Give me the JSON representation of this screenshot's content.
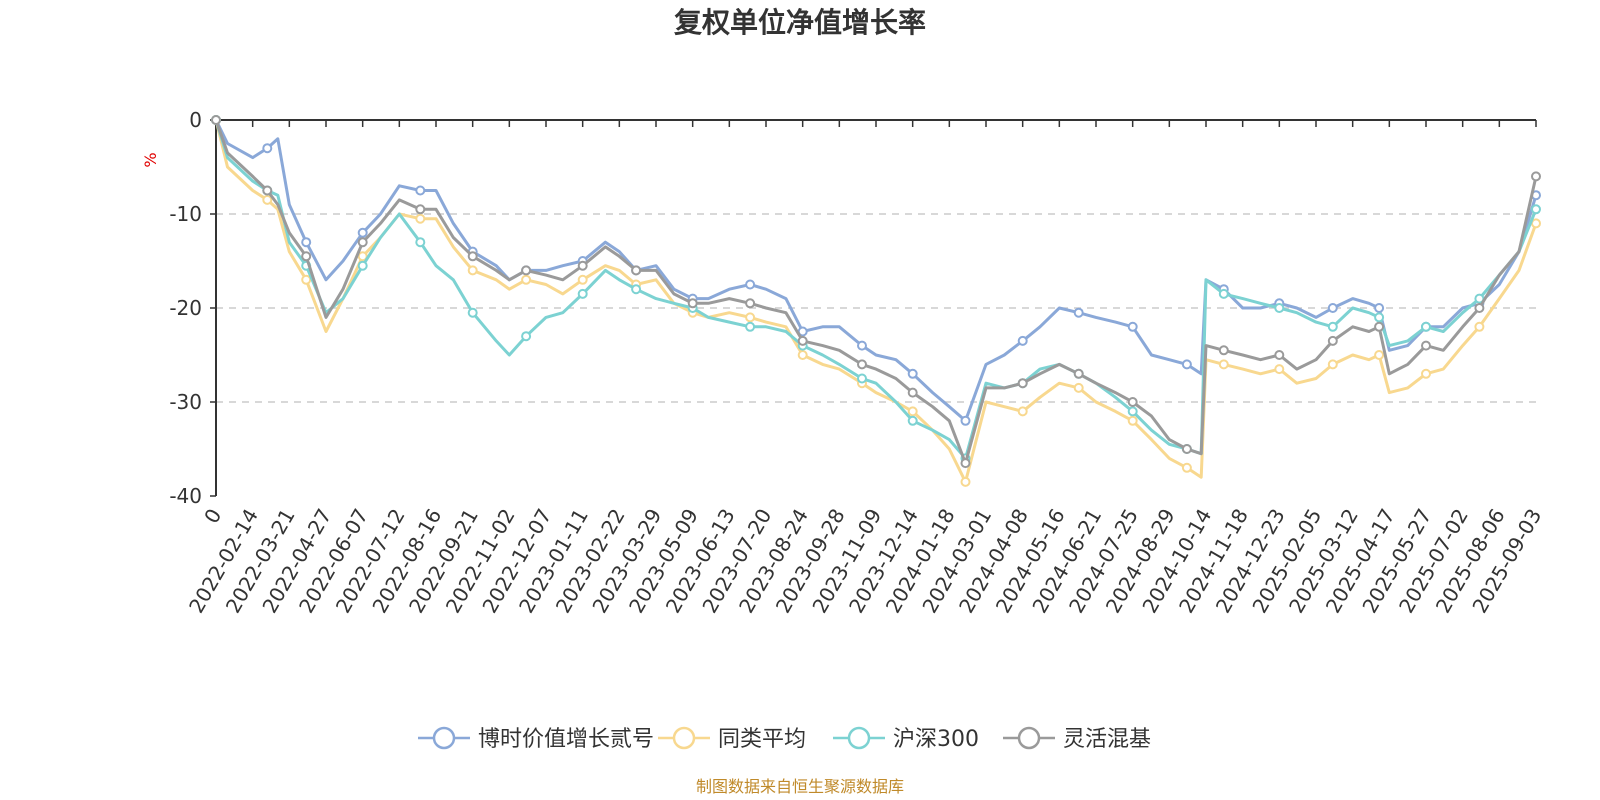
{
  "chart_data": {
    "type": "line",
    "title": "复权单位净值增长率",
    "ylabel": "%",
    "ylim": [
      -40,
      0
    ],
    "yticks": [
      0,
      -10,
      -20,
      -30,
      -40
    ],
    "grid": true,
    "legend_position": "bottom",
    "x_ticks": [
      "0",
      "2022-02-14",
      "2022-03-21",
      "2022-04-27",
      "2022-06-07",
      "2022-07-12",
      "2022-08-16",
      "2022-09-21",
      "2022-11-02",
      "2022-12-07",
      "2023-01-11",
      "2023-02-22",
      "2023-03-29",
      "2023-05-09",
      "2023-06-13",
      "2023-07-20",
      "2023-08-24",
      "2023-09-28",
      "2023-11-09",
      "2023-12-14",
      "2024-01-18",
      "2024-03-01",
      "2024-04-08",
      "2024-05-16",
      "2024-06-21",
      "2024-07-25",
      "2024-08-29",
      "2024-10-14",
      "2024-11-18",
      "2024-12-23",
      "2025-02-05",
      "2025-03-12",
      "2025-04-17",
      "2025-05-27",
      "2025-07-02",
      "2025-08-06",
      "2025-09-03"
    ],
    "x": [
      "2022-01-07",
      "2022-01-21",
      "2022-02-14",
      "2022-02-28",
      "2022-03-10",
      "2022-03-21",
      "2022-04-07",
      "2022-04-27",
      "2022-05-16",
      "2022-06-07",
      "2022-06-24",
      "2022-07-12",
      "2022-08-01",
      "2022-08-16",
      "2022-09-02",
      "2022-09-21",
      "2022-10-18",
      "2022-11-02",
      "2022-11-18",
      "2022-12-07",
      "2022-12-23",
      "2023-01-11",
      "2023-02-06",
      "2023-02-22",
      "2023-03-10",
      "2023-03-29",
      "2023-04-18",
      "2023-05-09",
      "2023-05-24",
      "2023-06-13",
      "2023-07-04",
      "2023-07-20",
      "2023-08-08",
      "2023-08-24",
      "2023-09-12",
      "2023-09-28",
      "2023-10-24",
      "2023-11-09",
      "2023-11-28",
      "2023-12-14",
      "2024-01-02",
      "2024-01-18",
      "2024-02-06",
      "2024-03-01",
      "2024-03-20",
      "2024-04-08",
      "2024-04-26",
      "2024-05-16",
      "2024-06-04",
      "2024-06-21",
      "2024-07-09",
      "2024-07-25",
      "2024-08-12",
      "2024-08-29",
      "2024-09-20",
      "2024-10-08",
      "2024-10-14",
      "2024-10-31",
      "2024-11-18",
      "2024-12-05",
      "2024-12-23",
      "2025-01-13",
      "2025-02-05",
      "2025-02-21",
      "2025-03-12",
      "2025-03-28",
      "2025-04-07",
      "2025-04-17",
      "2025-05-07",
      "2025-05-27",
      "2025-06-13",
      "2025-07-02",
      "2025-07-18",
      "2025-08-06",
      "2025-08-21",
      "2025-09-03"
    ],
    "series": [
      {
        "name": "博时价值增长贰号",
        "color": "#8aa8d8",
        "values": [
          0,
          -2.5,
          -4,
          -3,
          -2,
          -9,
          -13,
          -17,
          -15,
          -12,
          -10,
          -7,
          -7.5,
          -7.5,
          -11,
          -14,
          -15.5,
          -17,
          -16,
          -16,
          -15.5,
          -15,
          -13,
          -14,
          -16,
          -15.5,
          -18,
          -19,
          -19,
          -18,
          -17.5,
          -18,
          -19,
          -22.5,
          -22,
          -22,
          -24,
          -25,
          -25.5,
          -27,
          -29,
          -30.5,
          -32,
          -26,
          -25,
          -23.5,
          -22,
          -20,
          -20.5,
          -21,
          -21.5,
          -22,
          -25,
          -25.5,
          -26,
          -27,
          -17,
          -18,
          -20,
          -20,
          -19.5,
          -20,
          -21,
          -20,
          -19,
          -19.5,
          -20,
          -24.5,
          -24,
          -22,
          -22,
          -20,
          -19.5,
          -17.5,
          -14,
          -8
        ]
      },
      {
        "name": "同类平均",
        "color": "#f8d88f",
        "values": [
          0,
          -5,
          -7.5,
          -8.5,
          -9.5,
          -14,
          -17,
          -22.5,
          -19,
          -14.5,
          -12.5,
          -10,
          -10.5,
          -10.5,
          -13.5,
          -16,
          -17,
          -18,
          -17,
          -17.5,
          -18.5,
          -17,
          -15.5,
          -16,
          -17.5,
          -17,
          -19.5,
          -20.5,
          -21,
          -20.5,
          -21,
          -21.5,
          -22,
          -25,
          -26,
          -26.5,
          -28,
          -29,
          -30,
          -31,
          -33,
          -35,
          -38.5,
          -30,
          -30.5,
          -31,
          -29.5,
          -28,
          -28.5,
          -30,
          -31,
          -32,
          -34,
          -36,
          -37,
          -38,
          -25.5,
          -26,
          -26.5,
          -27,
          -26.5,
          -28,
          -27.5,
          -26,
          -25,
          -25.5,
          -25,
          -29,
          -28.5,
          -27,
          -26.5,
          -24,
          -22,
          -19,
          -16,
          -11
        ]
      },
      {
        "name": "沪深300",
        "color": "#7cd2d2",
        "values": [
          0,
          -4,
          -6.5,
          -7.5,
          -8,
          -13,
          -15.5,
          -20.5,
          -19,
          -15.5,
          -12.5,
          -10,
          -13,
          -15.5,
          -17,
          -20.5,
          -23.5,
          -25,
          -23,
          -21,
          -20.5,
          -18.5,
          -16,
          -17,
          -18,
          -19,
          -19.5,
          -20,
          -21,
          -21.5,
          -22,
          -22,
          -22.5,
          -24,
          -25,
          -26,
          -27.5,
          -28,
          -30,
          -32,
          -33,
          -34,
          -36,
          -28,
          -28.5,
          -28,
          -26.5,
          -26,
          -27,
          -28,
          -29.5,
          -31,
          -33,
          -34.5,
          -35,
          -35.5,
          -17,
          -18.5,
          -19,
          -19.5,
          -20,
          -20.5,
          -21.5,
          -22,
          -20,
          -20.5,
          -21,
          -24,
          -23.5,
          -22,
          -22.5,
          -20.5,
          -19,
          -16.5,
          -14,
          -9.5
        ]
      },
      {
        "name": "灵活混基",
        "color": "#9a9a9a",
        "values": [
          0,
          -3.5,
          -6,
          -7.5,
          -9,
          -12,
          -14.5,
          -21,
          -18,
          -13,
          -11,
          -8.5,
          -9.5,
          -9.5,
          -12.5,
          -14.5,
          -16,
          -17,
          -16,
          -16.5,
          -17,
          -15.5,
          -13.5,
          -14.5,
          -16,
          -16,
          -18.5,
          -19.5,
          -19.5,
          -19,
          -19.5,
          -20,
          -20.5,
          -23.5,
          -24,
          -24.5,
          -26,
          -26.5,
          -27.5,
          -29,
          -30.5,
          -32,
          -36.5,
          -28.5,
          -28.5,
          -28,
          -27,
          -26,
          -27,
          -28,
          -29,
          -30,
          -31.5,
          -34,
          -35,
          -35.5,
          -24,
          -24.5,
          -25,
          -25.5,
          -25,
          -26.5,
          -25.5,
          -23.5,
          -22,
          -22.5,
          -22,
          -27,
          -26,
          -24,
          -24.5,
          -22,
          -20,
          -16.5,
          -14,
          -6
        ]
      }
    ],
    "source": "制图数据来自恒生聚源数据库"
  }
}
